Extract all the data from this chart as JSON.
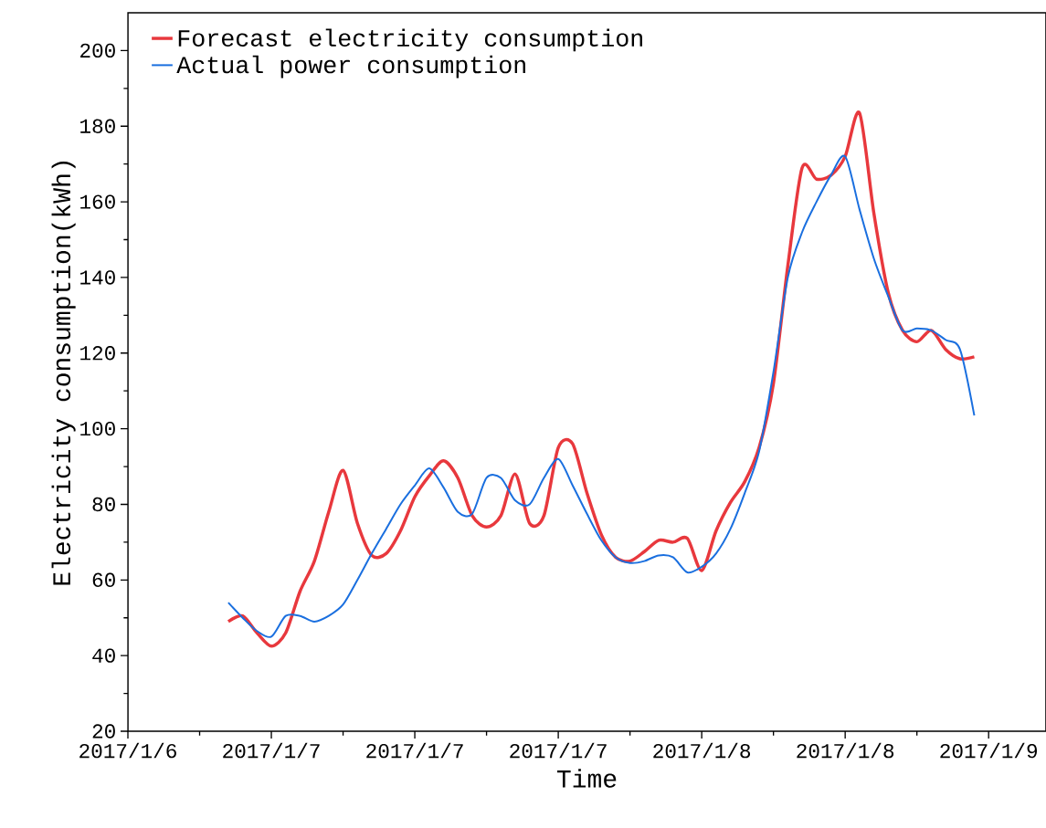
{
  "chart_data": {
    "type": "line",
    "xlabel": "Time",
    "ylabel": "Electricity consumption(kWh)",
    "categories": [
      "2017/1/6",
      null,
      null,
      null,
      null,
      null,
      null,
      null,
      null,
      null,
      "2017/1/7",
      null,
      null,
      null,
      null,
      null,
      null,
      null,
      null,
      null,
      "2017/1/7",
      null,
      null,
      null,
      null,
      null,
      null,
      null,
      null,
      null,
      "2017/1/7",
      null,
      null,
      null,
      null,
      null,
      null,
      null,
      null,
      null,
      "2017/1/8",
      null,
      null,
      null,
      null,
      null,
      null,
      null,
      null,
      null,
      "2017/1/8",
      null,
      null,
      null,
      null,
      null,
      null,
      null,
      null,
      null,
      "2017/1/9",
      null,
      null,
      null,
      null
    ],
    "ylim": [
      20,
      210
    ],
    "yticks": [
      20,
      40,
      60,
      80,
      100,
      120,
      140,
      160,
      180,
      200
    ],
    "legend": "top left",
    "marker": "none",
    "line_style": "solid",
    "series": [
      {
        "name": "Forecast electricity consumption",
        "color": "#e8383d",
        "values": [
          null,
          null,
          null,
          null,
          null,
          null,
          null,
          49,
          50.5,
          46,
          42.5,
          46,
          57,
          65,
          78,
          89,
          75,
          66.5,
          67,
          73,
          82,
          87.5,
          91.5,
          87,
          77,
          74,
          77,
          88,
          75,
          77,
          95,
          96,
          83,
          72,
          66,
          65,
          67.5,
          70.5,
          70,
          71,
          62.5,
          73,
          80.5,
          86,
          95,
          112,
          143,
          169,
          166,
          167,
          172,
          183.5,
          157,
          136,
          126,
          123,
          126,
          121,
          118.5,
          119,
          null,
          null,
          null,
          null,
          null
        ]
      },
      {
        "name": "Actual power consumption",
        "color": "#1a6fdf",
        "values": [
          null,
          null,
          null,
          null,
          null,
          null,
          null,
          54,
          50,
          46.5,
          45,
          50.5,
          50.5,
          49,
          50.5,
          53.5,
          60,
          67,
          73.5,
          80,
          85,
          89.5,
          84.5,
          78,
          77.5,
          87,
          87,
          81,
          80,
          87,
          92,
          85,
          77.5,
          70.5,
          66,
          64.5,
          65,
          66.5,
          66,
          62,
          63.5,
          67,
          73.5,
          83,
          94,
          115,
          140,
          152,
          160,
          167,
          172,
          158,
          145,
          135,
          126,
          126.5,
          126,
          123.5,
          121,
          103.5,
          null,
          null,
          null,
          null,
          null
        ]
      }
    ]
  }
}
